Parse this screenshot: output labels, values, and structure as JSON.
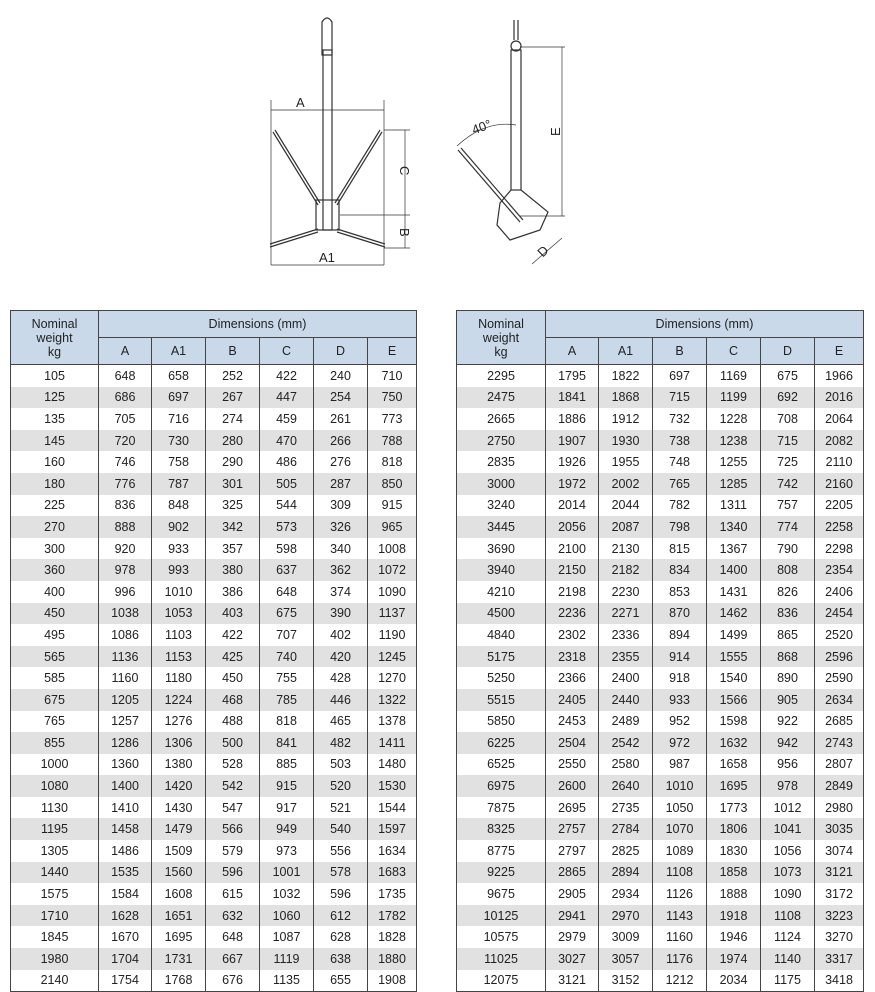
{
  "drawing": {
    "labels": {
      "A": "A",
      "A1": "A1",
      "B": "B",
      "C": "C",
      "D": "D",
      "E": "E",
      "angle": "40°"
    }
  },
  "table_header": {
    "weight_label_1": "Nominal",
    "weight_label_2": "weight",
    "weight_label_3": "kg",
    "group_label": "Dimensions (mm)",
    "columns": [
      "A",
      "A1",
      "B",
      "C",
      "D",
      "E"
    ]
  },
  "left_table": {
    "rows": [
      [
        "105",
        "648",
        "658",
        "252",
        "422",
        "240",
        "710"
      ],
      [
        "125",
        "686",
        "697",
        "267",
        "447",
        "254",
        "750"
      ],
      [
        "135",
        "705",
        "716",
        "274",
        "459",
        "261",
        "773"
      ],
      [
        "145",
        "720",
        "730",
        "280",
        "470",
        "266",
        "788"
      ],
      [
        "160",
        "746",
        "758",
        "290",
        "486",
        "276",
        "818"
      ],
      [
        "180",
        "776",
        "787",
        "301",
        "505",
        "287",
        "850"
      ],
      [
        "225",
        "836",
        "848",
        "325",
        "544",
        "309",
        "915"
      ],
      [
        "270",
        "888",
        "902",
        "342",
        "573",
        "326",
        "965"
      ],
      [
        "300",
        "920",
        "933",
        "357",
        "598",
        "340",
        "1008"
      ],
      [
        "360",
        "978",
        "993",
        "380",
        "637",
        "362",
        "1072"
      ],
      [
        "400",
        "996",
        "1010",
        "386",
        "648",
        "374",
        "1090"
      ],
      [
        "450",
        "1038",
        "1053",
        "403",
        "675",
        "390",
        "1137"
      ],
      [
        "495",
        "1086",
        "1103",
        "422",
        "707",
        "402",
        "1190"
      ],
      [
        "565",
        "1136",
        "1153",
        "425",
        "740",
        "420",
        "1245"
      ],
      [
        "585",
        "1160",
        "1180",
        "450",
        "755",
        "428",
        "1270"
      ],
      [
        "675",
        "1205",
        "1224",
        "468",
        "785",
        "446",
        "1322"
      ],
      [
        "765",
        "1257",
        "1276",
        "488",
        "818",
        "465",
        "1378"
      ],
      [
        "855",
        "1286",
        "1306",
        "500",
        "841",
        "482",
        "1411"
      ],
      [
        "1000",
        "1360",
        "1380",
        "528",
        "885",
        "503",
        "1480"
      ],
      [
        "1080",
        "1400",
        "1420",
        "542",
        "915",
        "520",
        "1530"
      ],
      [
        "1130",
        "1410",
        "1430",
        "547",
        "917",
        "521",
        "1544"
      ],
      [
        "1195",
        "1458",
        "1479",
        "566",
        "949",
        "540",
        "1597"
      ],
      [
        "1305",
        "1486",
        "1509",
        "579",
        "973",
        "556",
        "1634"
      ],
      [
        "1440",
        "1535",
        "1560",
        "596",
        "1001",
        "578",
        "1683"
      ],
      [
        "1575",
        "1584",
        "1608",
        "615",
        "1032",
        "596",
        "1735"
      ],
      [
        "1710",
        "1628",
        "1651",
        "632",
        "1060",
        "612",
        "1782"
      ],
      [
        "1845",
        "1670",
        "1695",
        "648",
        "1087",
        "628",
        "1828"
      ],
      [
        "1980",
        "1704",
        "1731",
        "667",
        "1119",
        "638",
        "1880"
      ],
      [
        "2140",
        "1754",
        "1768",
        "676",
        "1135",
        "655",
        "1908"
      ]
    ]
  },
  "right_table": {
    "rows": [
      [
        "2295",
        "1795",
        "1822",
        "697",
        "1169",
        "675",
        "1966"
      ],
      [
        "2475",
        "1841",
        "1868",
        "715",
        "1199",
        "692",
        "2016"
      ],
      [
        "2665",
        "1886",
        "1912",
        "732",
        "1228",
        "708",
        "2064"
      ],
      [
        "2750",
        "1907",
        "1930",
        "738",
        "1238",
        "715",
        "2082"
      ],
      [
        "2835",
        "1926",
        "1955",
        "748",
        "1255",
        "725",
        "2110"
      ],
      [
        "3000",
        "1972",
        "2002",
        "765",
        "1285",
        "742",
        "2160"
      ],
      [
        "3240",
        "2014",
        "2044",
        "782",
        "1311",
        "757",
        "2205"
      ],
      [
        "3445",
        "2056",
        "2087",
        "798",
        "1340",
        "774",
        "2258"
      ],
      [
        "3690",
        "2100",
        "2130",
        "815",
        "1367",
        "790",
        "2298"
      ],
      [
        "3940",
        "2150",
        "2182",
        "834",
        "1400",
        "808",
        "2354"
      ],
      [
        "4210",
        "2198",
        "2230",
        "853",
        "1431",
        "826",
        "2406"
      ],
      [
        "4500",
        "2236",
        "2271",
        "870",
        "1462",
        "836",
        "2454"
      ],
      [
        "4840",
        "2302",
        "2336",
        "894",
        "1499",
        "865",
        "2520"
      ],
      [
        "5175",
        "2318",
        "2355",
        "914",
        "1555",
        "868",
        "2596"
      ],
      [
        "5250",
        "2366",
        "2400",
        "918",
        "1540",
        "890",
        "2590"
      ],
      [
        "5515",
        "2405",
        "2440",
        "933",
        "1566",
        "905",
        "2634"
      ],
      [
        "5850",
        "2453",
        "2489",
        "952",
        "1598",
        "922",
        "2685"
      ],
      [
        "6225",
        "2504",
        "2542",
        "972",
        "1632",
        "942",
        "2743"
      ],
      [
        "6525",
        "2550",
        "2580",
        "987",
        "1658",
        "956",
        "2807"
      ],
      [
        "6975",
        "2600",
        "2640",
        "1010",
        "1695",
        "978",
        "2849"
      ],
      [
        "7875",
        "2695",
        "2735",
        "1050",
        "1773",
        "1012",
        "2980"
      ],
      [
        "8325",
        "2757",
        "2784",
        "1070",
        "1806",
        "1041",
        "3035"
      ],
      [
        "8775",
        "2797",
        "2825",
        "1089",
        "1830",
        "1056",
        "3074"
      ],
      [
        "9225",
        "2865",
        "2894",
        "1108",
        "1858",
        "1073",
        "3121"
      ],
      [
        "9675",
        "2905",
        "2934",
        "1126",
        "1888",
        "1090",
        "3172"
      ],
      [
        "10125",
        "2941",
        "2970",
        "1143",
        "1918",
        "1108",
        "3223"
      ],
      [
        "10575",
        "2979",
        "3009",
        "1160",
        "1946",
        "1124",
        "3270"
      ],
      [
        "11025",
        "3027",
        "3057",
        "1176",
        "1974",
        "1140",
        "3317"
      ],
      [
        "12075",
        "3121",
        "3152",
        "1212",
        "2034",
        "1175",
        "3418"
      ]
    ]
  },
  "colors": {
    "header_bg": "#c9d9ea",
    "stripe_bg": "#e1e1e1",
    "border": "#444444"
  }
}
